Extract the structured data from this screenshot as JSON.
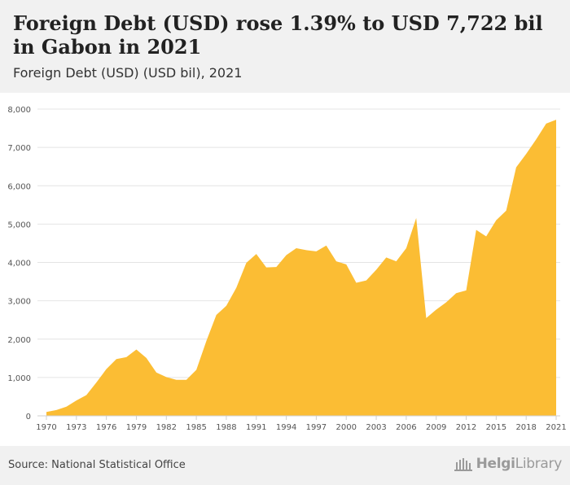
{
  "header": {
    "title": "Foreign Debt (USD) rose 1.39% to USD 7,722 bil in Gabon in 2021",
    "subtitle": "Foreign Debt (USD) (USD bil), 2021"
  },
  "footer": {
    "source": "Source: National Statistical Office",
    "logo_bold": "Helgi",
    "logo_rest": "Library"
  },
  "colors": {
    "area_fill": "#fbbd34",
    "grid": "#e4e4e4",
    "tick_text": "#555555"
  },
  "chart_data": {
    "type": "area",
    "title": "Foreign Debt (USD) rose 1.39% to USD 7,722 bil in Gabon in 2021",
    "subtitle": "Foreign Debt (USD) (USD bil), 2021",
    "xlabel": "",
    "ylabel": "",
    "ylim": [
      0,
      8000
    ],
    "yticks": [
      0,
      1000,
      2000,
      3000,
      4000,
      5000,
      6000,
      7000,
      8000
    ],
    "ytick_labels": [
      "0",
      "1,000",
      "2,000",
      "3,000",
      "4,000",
      "5,000",
      "6,000",
      "7,000",
      "8,000"
    ],
    "xticks": [
      1970,
      1973,
      1976,
      1979,
      1982,
      1985,
      1988,
      1991,
      1994,
      1997,
      2000,
      2003,
      2006,
      2009,
      2012,
      2015,
      2018,
      2021
    ],
    "grid": true,
    "x": [
      1970,
      1971,
      1972,
      1973,
      1974,
      1975,
      1976,
      1977,
      1978,
      1979,
      1980,
      1981,
      1982,
      1983,
      1984,
      1985,
      1986,
      1987,
      1988,
      1989,
      1990,
      1991,
      1992,
      1993,
      1994,
      1995,
      1996,
      1997,
      1998,
      1999,
      2000,
      2001,
      2002,
      2003,
      2004,
      2005,
      2006,
      2007,
      2008,
      2009,
      2010,
      2011,
      2012,
      2013,
      2014,
      2015,
      2016,
      2017,
      2018,
      2019,
      2020,
      2021
    ],
    "series": [
      {
        "values": [
          100,
          150,
          240,
          400,
          540,
          870,
          1220,
          1480,
          1530,
          1730,
          1510,
          1130,
          1010,
          940,
          940,
          1200,
          1950,
          2630,
          2870,
          3340,
          3990,
          4220,
          3870,
          3880,
          4190,
          4370,
          4320,
          4290,
          4440,
          4030,
          3950,
          3470,
          3530,
          3810,
          4130,
          4030,
          4370,
          5160,
          2550,
          2770,
          2960,
          3200,
          3270,
          4850,
          4680,
          5100,
          5350,
          6480,
          6830,
          7210,
          7620,
          7722
        ]
      }
    ]
  }
}
